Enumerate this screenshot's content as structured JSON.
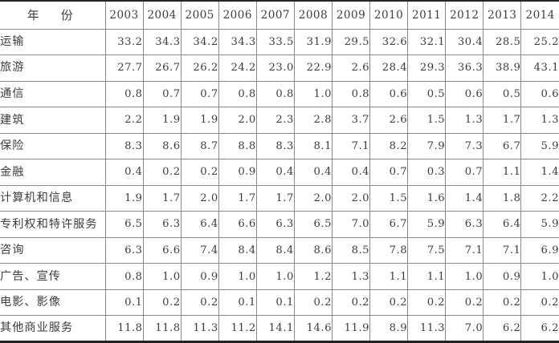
{
  "table": {
    "header_label": "年　份",
    "years": [
      "2003",
      "2004",
      "2005",
      "2006",
      "2007",
      "2008",
      "2009",
      "2010",
      "2011",
      "2012",
      "2013",
      "2014"
    ],
    "rows": [
      {
        "label": "运输",
        "values": [
          "33.2",
          "34.3",
          "34.2",
          "34.3",
          "33.5",
          "31.9",
          "29.5",
          "32.6",
          "32.1",
          "30.4",
          "28.5",
          "25.2"
        ]
      },
      {
        "label": "旅游",
        "values": [
          "27.7",
          "26.7",
          "26.2",
          "24.2",
          "23.0",
          "22.9",
          "2.6",
          "28.4",
          "29.3",
          "36.3",
          "38.9",
          "43.1"
        ]
      },
      {
        "label": "通信",
        "values": [
          "0.8",
          "0.7",
          "0.7",
          "0.8",
          "0.8",
          "1.0",
          "0.8",
          "0.6",
          "0.5",
          "0.6",
          "0.5",
          "0.6"
        ]
      },
      {
        "label": "建筑",
        "values": [
          "2.2",
          "1.9",
          "1.9",
          "2.0",
          "2.3",
          "2.8",
          "3.7",
          "2.6",
          "1.5",
          "1.3",
          "1.7",
          "1.3"
        ]
      },
      {
        "label": "保险",
        "values": [
          "8.3",
          "8.6",
          "8.7",
          "8.8",
          "8.3",
          "8.1",
          "7.1",
          "8.2",
          "7.9",
          "7.3",
          "6.7",
          "5.9"
        ]
      },
      {
        "label": "金融",
        "values": [
          "0.4",
          "0.2",
          "0.2",
          "0.9",
          "0.4",
          "0.4",
          "0.4",
          "0.7",
          "0.3",
          "0.7",
          "1.1",
          "1.4"
        ]
      },
      {
        "label": "计算机和信息",
        "values": [
          "1.9",
          "1.7",
          "2.0",
          "1.7",
          "1.7",
          "2.0",
          "2.0",
          "1.5",
          "1.6",
          "1.4",
          "1.8",
          "2.2"
        ]
      },
      {
        "label": "专利权和特许服务",
        "values": [
          "6.5",
          "6.3",
          "6.4",
          "6.6",
          "6.3",
          "6.5",
          "7.0",
          "6.7",
          "5.9",
          "6.3",
          "6.4",
          "5.9"
        ]
      },
      {
        "label": "咨询",
        "values": [
          "6.3",
          "6.6",
          "7.4",
          "8.4",
          "8.4",
          "8.6",
          "8.5",
          "7.8",
          "7.5",
          "7.1",
          "7.1",
          "6.9"
        ]
      },
      {
        "label": "广告、宣传",
        "values": [
          "0.8",
          "1.0",
          "0.9",
          "1.0",
          "1.0",
          "1.2",
          "1.3",
          "1.1",
          "1.1",
          "1.0",
          "0.9",
          "1.0"
        ]
      },
      {
        "label": "电影、影像",
        "values": [
          "0.1",
          "0.2",
          "0.2",
          "0.1",
          "0.1",
          "0.2",
          "0.2",
          "0.2",
          "0.2",
          "0.2",
          "0.2",
          "0.2"
        ]
      },
      {
        "label": "其他商业服务",
        "values": [
          "11.8",
          "11.8",
          "11.3",
          "11.2",
          "14.1",
          "14.6",
          "11.9",
          "8.9",
          "11.3",
          "7.0",
          "6.2",
          "6.2"
        ]
      }
    ]
  },
  "colors": {
    "text": "#3d3d3d",
    "grid_line": "#878787",
    "outer_border": "#232323",
    "background": "#ffffff"
  }
}
